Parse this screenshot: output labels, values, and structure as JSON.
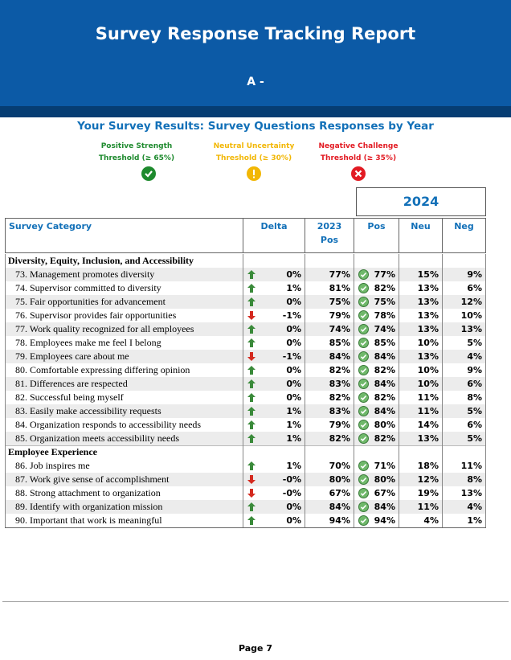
{
  "header": {
    "title": "Survey Response Tracking Report",
    "subtitle": "A -"
  },
  "section_title": "Your Survey Results: Survey Questions Responses by Year",
  "legend": [
    {
      "label": "Positive Strength Threshold (≥ 65%)",
      "color": "#1e8a2e"
    },
    {
      "label": "Neutral Uncertainty Threshold (≥ 30%)",
      "color": "#f2b705"
    },
    {
      "label": "Negative Challenge Threshold (≥ 35%)",
      "color": "#e21b23"
    }
  ],
  "table": {
    "year": "2024",
    "columns": [
      "Survey Category",
      "Delta",
      "2023 Pos",
      "Pos",
      "Neu",
      "Neg"
    ],
    "groups": [
      {
        "name": "Diversity, Equity, Inclusion, and Accessibility",
        "rows": [
          {
            "label": "73. Management promotes diversity",
            "trend": "up",
            "delta": "0%",
            "prev": "77%",
            "pos": "77%",
            "neu": "15%",
            "neg": "9%"
          },
          {
            "label": "74. Supervisor committed to diversity",
            "trend": "up",
            "delta": "1%",
            "prev": "81%",
            "pos": "82%",
            "neu": "13%",
            "neg": "6%"
          },
          {
            "label": "75. Fair opportunities for advancement",
            "trend": "up",
            "delta": "0%",
            "prev": "75%",
            "pos": "75%",
            "neu": "13%",
            "neg": "12%"
          },
          {
            "label": "76. Supervisor provides fair opportunities",
            "trend": "down",
            "delta": "-1%",
            "prev": "79%",
            "pos": "78%",
            "neu": "13%",
            "neg": "10%"
          },
          {
            "label": "77. Work quality recognized for all employees",
            "trend": "up",
            "delta": "0%",
            "prev": "74%",
            "pos": "74%",
            "neu": "13%",
            "neg": "13%"
          },
          {
            "label": "78. Employees make me feel I belong",
            "trend": "up",
            "delta": "0%",
            "prev": "85%",
            "pos": "85%",
            "neu": "10%",
            "neg": "5%"
          },
          {
            "label": "79. Employees care about me",
            "trend": "down",
            "delta": "-1%",
            "prev": "84%",
            "pos": "84%",
            "neu": "13%",
            "neg": "4%"
          },
          {
            "label": "80. Comfortable expressing differing opinion",
            "trend": "up",
            "delta": "0%",
            "prev": "82%",
            "pos": "82%",
            "neu": "10%",
            "neg": "9%"
          },
          {
            "label": "81. Differences are respected",
            "trend": "up",
            "delta": "0%",
            "prev": "83%",
            "pos": "84%",
            "neu": "10%",
            "neg": "6%"
          },
          {
            "label": "82. Successful being myself",
            "trend": "up",
            "delta": "0%",
            "prev": "82%",
            "pos": "82%",
            "neu": "11%",
            "neg": "8%"
          },
          {
            "label": "83. Easily make accessibility requests",
            "trend": "up",
            "delta": "1%",
            "prev": "83%",
            "pos": "84%",
            "neu": "11%",
            "neg": "5%"
          },
          {
            "label": "84. Organization responds to accessibility needs",
            "trend": "up",
            "delta": "1%",
            "prev": "79%",
            "pos": "80%",
            "neu": "14%",
            "neg": "6%"
          },
          {
            "label": "85. Organization meets accessibility needs",
            "trend": "up",
            "delta": "1%",
            "prev": "82%",
            "pos": "82%",
            "neu": "13%",
            "neg": "5%"
          }
        ]
      },
      {
        "name": "Employee Experience",
        "rows": [
          {
            "label": "86. Job inspires me",
            "trend": "up",
            "delta": "1%",
            "prev": "70%",
            "pos": "71%",
            "neu": "18%",
            "neg": "11%"
          },
          {
            "label": "87. Work give sense of accomplishment",
            "trend": "down",
            "delta": "-0%",
            "prev": "80%",
            "pos": "80%",
            "neu": "12%",
            "neg": "8%"
          },
          {
            "label": "88. Strong attachment to organization",
            "trend": "down",
            "delta": "-0%",
            "prev": "67%",
            "pos": "67%",
            "neu": "19%",
            "neg": "13%"
          },
          {
            "label": "89. Identify with organization mission",
            "trend": "up",
            "delta": "0%",
            "prev": "84%",
            "pos": "84%",
            "neu": "11%",
            "neg": "4%"
          },
          {
            "label": "90. Important that work is meaningful",
            "trend": "up",
            "delta": "0%",
            "prev": "94%",
            "pos": "94%",
            "neu": "4%",
            "neg": "1%"
          }
        ]
      }
    ]
  },
  "footer": "Page 7"
}
